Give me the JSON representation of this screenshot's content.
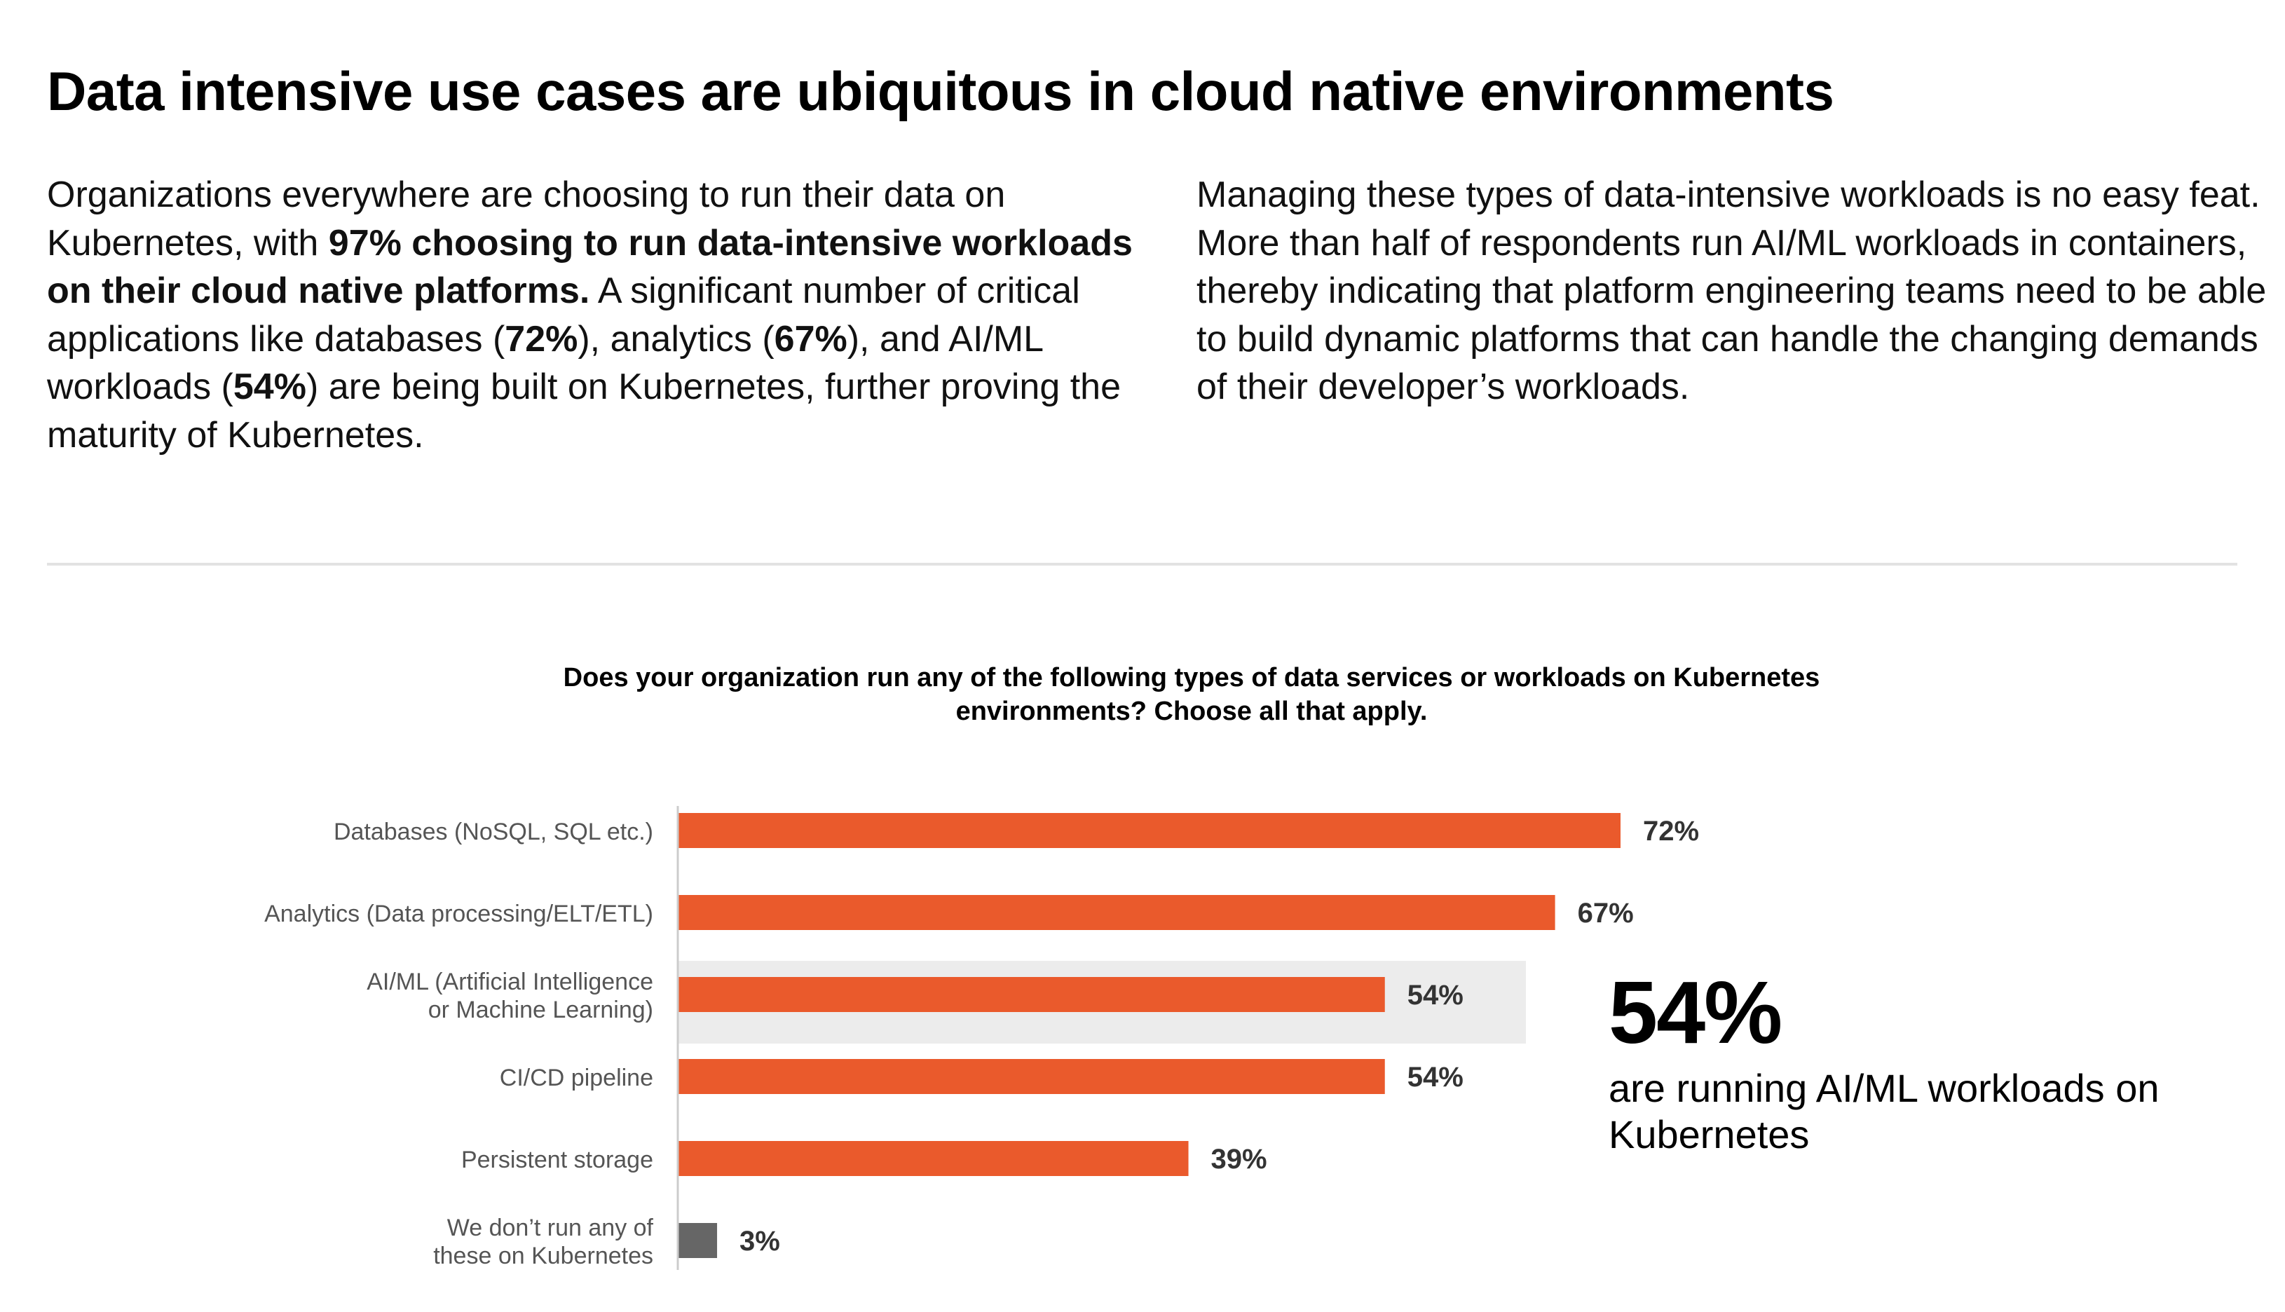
{
  "title": "Data intensive use cases are ubiquitous in cloud native environments",
  "left_paragraph": {
    "p1": "Organizations everywhere are choosing to run their data on Kubernetes, with ",
    "b1": "97% choosing to run data-intensive workloads on their cloud native platforms.",
    "p2": " A significant number of critical applications like databases (",
    "b2": "72%",
    "p3": "), analytics (",
    "b3": "67%",
    "p4": "), and AI/ML workloads (",
    "b4": "54%",
    "p5": ") are being built on Kubernetes, further proving the maturity of Kubernetes."
  },
  "right_paragraph": "Managing these types of data-intensive workloads is no easy feat. More than half of respondents run AI/ML workloads in containers, thereby indicating that platform engineering teams need to be able to build dynamic platforms that can handle the changing demands of their developer’s workloads.",
  "callout": {
    "value": "54%",
    "text": "are running AI/ML workloads on Kubernetes"
  },
  "colors": {
    "bar": "#ea5a2c",
    "bar_muted": "#666666",
    "highlight_band": "#ececec",
    "axis": "#cccccc",
    "category_text": "#555555",
    "value_text": "#333333"
  },
  "chart_data": {
    "type": "bar",
    "orientation": "horizontal",
    "title": "Does your organization run any of the following types of data services or workloads on Kubernetes environments? Choose all that apply.",
    "categories": [
      [
        "Databases (NoSQL, SQL etc.)"
      ],
      [
        "Analytics (Data processing/ELT/ETL)"
      ],
      [
        "AI/ML (Artificial Intelligence",
        "or Machine Learning)"
      ],
      [
        "CI/CD pipeline"
      ],
      [
        "Persistent storage"
      ],
      [
        "We don’t run any of",
        "these on Kubernetes"
      ]
    ],
    "values": [
      72,
      67,
      54,
      54,
      39,
      3
    ],
    "value_labels": [
      "72%",
      "67%",
      "54%",
      "54%",
      "39%",
      "3%"
    ],
    "muted_index": 5,
    "highlight_index": 2,
    "xlim": [
      0,
      100
    ],
    "grid": false
  }
}
